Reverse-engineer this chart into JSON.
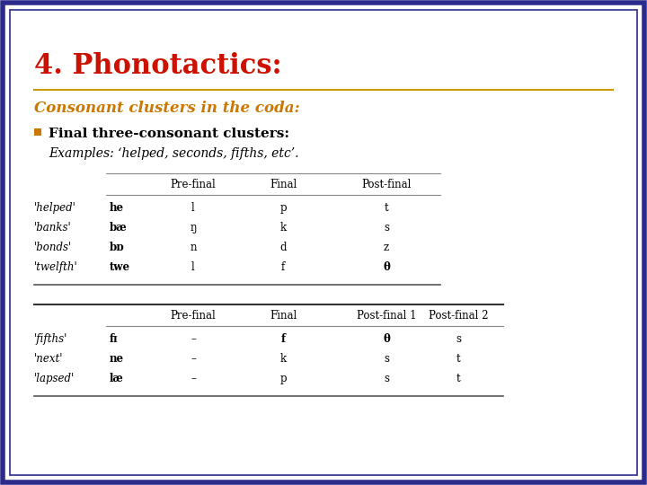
{
  "title": "4. Phonotactics:",
  "title_color": "#CC1100",
  "subtitle": "Consonant clusters in the coda:",
  "subtitle_color": "#CC7700",
  "bullet_color": "#CC7700",
  "bullet_text": "Final three-consonant clusters:",
  "bullet_text_color": "#000000",
  "examples_text": "Examples: ‘helped, seconds, fifths, etc’.",
  "separator_color": "#CC9900",
  "outer_border_color": "#2B2B8C",
  "inner_border_color": "#2B2B8C",
  "bg_color": "#FFFFFF",
  "table1_headers": [
    "Pre-final",
    "Final",
    "Post-final"
  ],
  "table1_rows": [
    [
      "'helped'",
      "he",
      "l",
      "p",
      "t"
    ],
    [
      "'banks'",
      "bæ",
      "ŋ",
      "k",
      "s"
    ],
    [
      "'bonds'",
      "bɒ",
      "n",
      "d",
      "z"
    ],
    [
      "'twelfth'",
      "twe",
      "l",
      "f",
      "θ"
    ]
  ],
  "table2_headers": [
    "Pre-final",
    "Final",
    "Post-final 1",
    "Post-final 2"
  ],
  "table2_rows": [
    [
      "'fifths'",
      "fɪ",
      "–",
      "f",
      "θ",
      "s"
    ],
    [
      "'next'",
      "ne",
      "–",
      "k",
      "s",
      "t"
    ],
    [
      "'lapsed'",
      "læ",
      "–",
      "p",
      "s",
      "t"
    ]
  ]
}
